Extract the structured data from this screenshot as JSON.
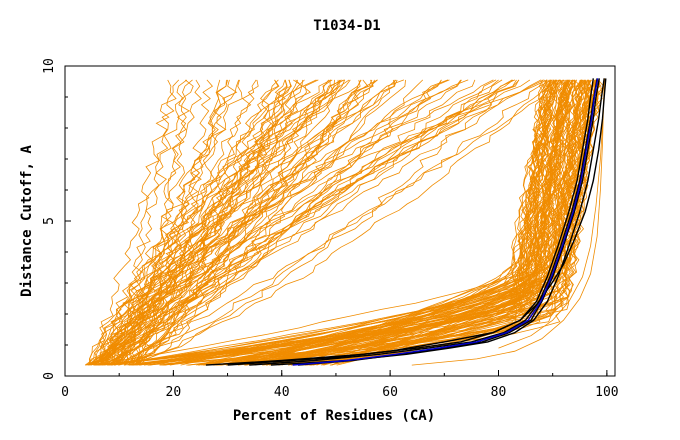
{
  "chart_data": {
    "type": "line",
    "title": "T1034-D1",
    "xlabel": "Percent of Residues (CA)",
    "ylabel": "Distance Cutoff, A",
    "xlim": [
      0,
      100
    ],
    "ylim": [
      0,
      10
    ],
    "x_ticks": [
      "0",
      "20",
      "40",
      "60",
      "80",
      "100"
    ],
    "y_ticks": [
      "0",
      "5",
      "10"
    ],
    "grid": false,
    "legend": "none",
    "colors": {
      "models": "#f08c00",
      "reference": "#000000",
      "highlight": "#0000cc"
    },
    "series": [
      {
        "color": "#000000",
        "x": [
          26,
          40,
          55,
          65,
          73,
          79,
          84,
          87,
          89,
          91,
          93,
          94.5,
          95.5,
          96.5,
          97,
          97.5
        ],
        "y": [
          0.35,
          0.5,
          0.7,
          0.9,
          1.1,
          1.4,
          1.8,
          2.4,
          3.2,
          4.2,
          5.3,
          6.3,
          7.3,
          8.3,
          9.0,
          9.6
        ]
      },
      {
        "color": "#000000",
        "x": [
          34,
          46,
          58,
          67,
          75,
          81,
          85,
          87.5,
          89.5,
          91.5,
          93.5,
          95,
          96,
          97,
          97.6,
          98.2
        ],
        "y": [
          0.35,
          0.5,
          0.7,
          0.9,
          1.1,
          1.4,
          1.8,
          2.4,
          3.2,
          4.2,
          5.3,
          6.3,
          7.3,
          8.3,
          9.0,
          9.6
        ]
      },
      {
        "color": "#000000",
        "x": [
          43,
          53,
          62,
          70,
          77,
          82,
          86,
          88,
          90,
          92,
          94,
          95.5,
          96.5,
          97.5,
          98,
          98.6
        ],
        "y": [
          0.35,
          0.5,
          0.7,
          0.9,
          1.1,
          1.4,
          1.8,
          2.4,
          3.2,
          4.2,
          5.3,
          6.3,
          7.3,
          8.3,
          9.0,
          9.6
        ]
      },
      {
        "color": "#000000",
        "x": [
          38,
          52,
          63,
          71,
          78,
          83,
          86.5,
          89,
          91,
          93,
          95,
          96.5,
          97.5,
          98.5,
          99,
          99.5
        ],
        "y": [
          0.35,
          0.5,
          0.7,
          0.9,
          1.1,
          1.4,
          1.8,
          2.4,
          3.2,
          4.2,
          5.3,
          6.3,
          7.3,
          8.3,
          9.0,
          9.6
        ]
      },
      {
        "color": "#000000",
        "x": [
          30,
          50,
          60,
          70,
          79,
          84,
          87,
          89.5,
          92,
          94,
          96,
          97.5,
          98.5,
          99.2,
          99.5,
          99.8
        ],
        "y": [
          0.35,
          0.6,
          0.8,
          1.1,
          1.4,
          1.8,
          2.3,
          2.9,
          3.6,
          4.4,
          5.3,
          6.3,
          7.3,
          8.3,
          9.0,
          9.6
        ]
      },
      {
        "color": "#0000cc",
        "x": [
          42,
          52,
          61,
          69,
          76,
          81.5,
          85.5,
          87.8,
          89.8,
          91.8,
          93.8,
          95.2,
          96.2,
          97.2,
          97.7,
          98.3
        ],
        "y": [
          0.35,
          0.5,
          0.7,
          0.9,
          1.1,
          1.4,
          1.8,
          2.4,
          3.2,
          4.2,
          5.3,
          6.3,
          7.3,
          8.3,
          9.0,
          9.6
        ]
      }
    ]
  }
}
